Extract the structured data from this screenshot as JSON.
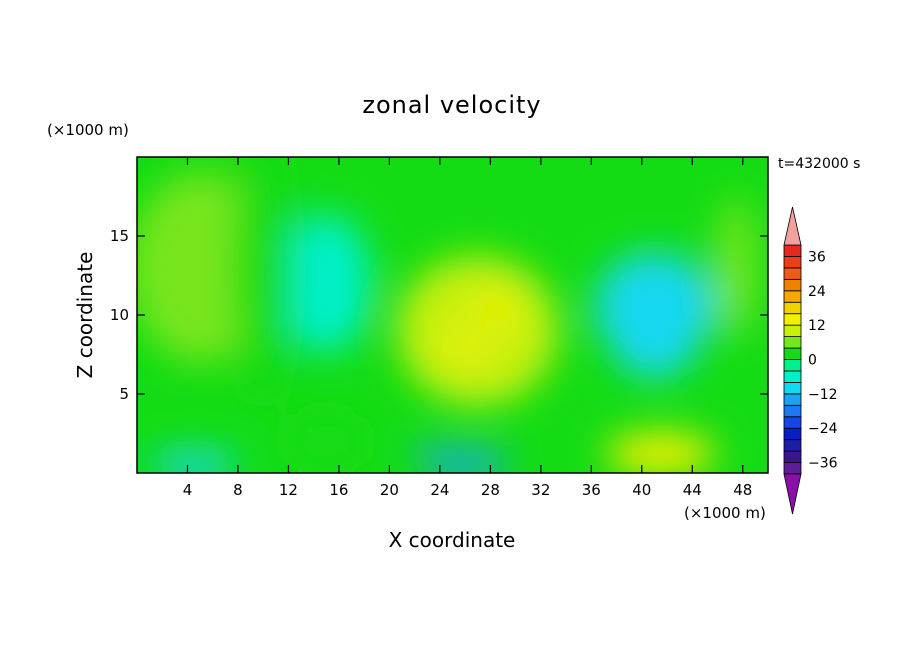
{
  "chart_data": {
    "type": "heatmap",
    "title": "zonal velocity",
    "xlabel": "X coordinate",
    "ylabel": "Z coordinate",
    "x_unit": "(×1000 m)",
    "y_unit": "(×1000 m)",
    "time_label": "t=432000 s",
    "xlim": [
      0,
      50
    ],
    "ylim": [
      0,
      20
    ],
    "x_ticks": [
      4,
      8,
      12,
      16,
      20,
      24,
      28,
      32,
      36,
      40,
      44,
      48
    ],
    "y_ticks": [
      5,
      10,
      15
    ],
    "colorbar": {
      "levels": [
        -40,
        -36,
        -32,
        -28,
        -24,
        -20,
        -16,
        -12,
        -8,
        -4,
        0,
        4,
        8,
        12,
        16,
        20,
        24,
        28,
        32,
        36,
        40
      ],
      "colors": [
        "#5a1e96",
        "#3c148c",
        "#1e1ea5",
        "#0a1ec8",
        "#1446e6",
        "#1e78f0",
        "#19a5f0",
        "#14d7f0",
        "#00f0c8",
        "#00f08c",
        "#14dc14",
        "#78e61e",
        "#c8f00a",
        "#f0f000",
        "#f0d200",
        "#f0aa00",
        "#f08200",
        "#f05a14",
        "#f03c1e",
        "#e6281e"
      ],
      "under_color": "#8a10a8",
      "over_color": "#f4a0a0",
      "tick_labels": [
        "36",
        "24",
        "12",
        "0",
        "−12",
        "−24",
        "−36"
      ],
      "tick_values": [
        36,
        24,
        12,
        0,
        -12,
        -24,
        -36
      ]
    },
    "field_features": [
      {
        "x": 5,
        "z": 13,
        "value": 5
      },
      {
        "x": 15,
        "z": 12,
        "value": -6
      },
      {
        "x": 27,
        "z": 9,
        "value": 10
      },
      {
        "x": 28.5,
        "z": 10.3,
        "value": 14
      },
      {
        "x": 26,
        "z": 8,
        "value": 14
      },
      {
        "x": 41,
        "z": 10.5,
        "value": -10
      },
      {
        "x": 41,
        "z": 7.8,
        "value": -10
      },
      {
        "x": 26,
        "z": 0.6,
        "value": -14
      },
      {
        "x": 23,
        "z": 1.6,
        "value": -14
      },
      {
        "x": 4.5,
        "z": 0.5,
        "value": -10
      },
      {
        "x": 41.5,
        "z": 1.2,
        "value": 13
      },
      {
        "x": 15,
        "z": 2,
        "value": 3
      },
      {
        "x": 47.5,
        "z": 13,
        "value": 4
      },
      {
        "x": 10,
        "z": 13,
        "value": 0
      }
    ]
  }
}
